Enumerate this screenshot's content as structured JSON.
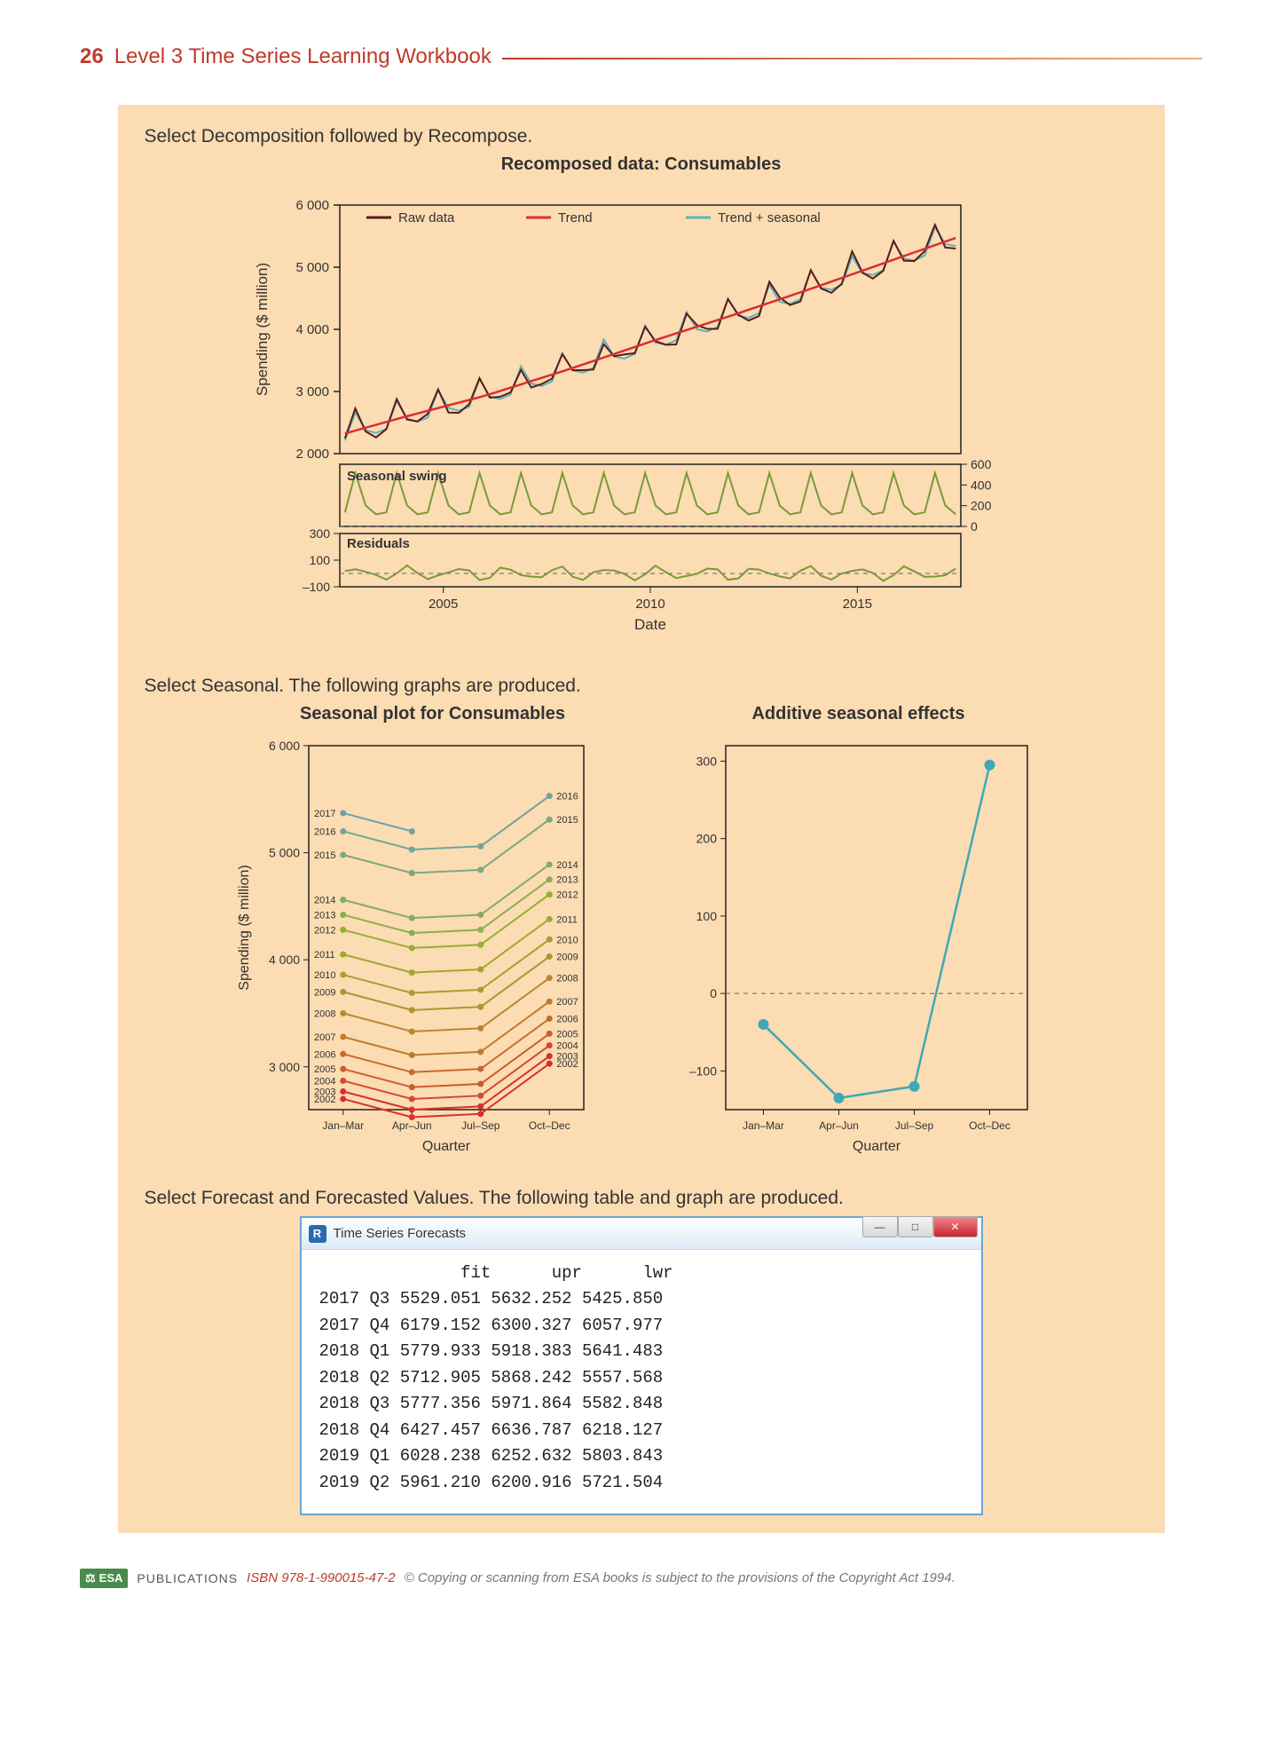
{
  "header": {
    "page_number": "26",
    "title": "Level 3 Time Series Learning Workbook"
  },
  "section1": {
    "instruction": "Select Decomposition followed by Recompose.",
    "chart": {
      "title": "Recomposed data: Consumables",
      "type": "line",
      "legend": [
        {
          "label": "Raw data",
          "color": "#5a1a1d"
        },
        {
          "label": "Trend",
          "color": "#d73030"
        },
        {
          "label": "Trend + seasonal",
          "color": "#5bb5b5"
        }
      ],
      "panels": {
        "main": {
          "ylabel": "Spending ($ million)",
          "ylim": [
            2000,
            6000
          ],
          "yticks": [
            2000,
            3000,
            4000,
            5000,
            6000
          ],
          "ytick_labels": [
            "2 000",
            "3 000",
            "4 000",
            "5 000",
            "6 000"
          ],
          "x_years": [
            2002.5,
            2017.5
          ],
          "trend": [
            [
              2002.5,
              2300
            ],
            [
              2004,
              2580
            ],
            [
              2006,
              2930
            ],
            [
              2008,
              3350
            ],
            [
              2010,
              3800
            ],
            [
              2012,
              4230
            ],
            [
              2014,
              4680
            ],
            [
              2016,
              5150
            ],
            [
              2017.5,
              5500
            ]
          ],
          "seasonal_amp": 300,
          "raw_noise_amp": 80
        },
        "seasonal": {
          "label": "Seasonal swing",
          "ylim": [
            0,
            600
          ],
          "yticks": [
            0,
            200,
            400,
            600
          ],
          "color": "#7a9a3a",
          "amp": 300,
          "baseline": 100
        },
        "residuals": {
          "label": "Residuals",
          "ylim": [
            -100,
            300
          ],
          "yticks": [
            -100,
            100,
            300
          ],
          "ytick_labels": [
            "–100",
            "100",
            "300"
          ],
          "color": "#7a9a3a",
          "amp": 60
        }
      },
      "xlabel": "Date",
      "xticks": [
        2005,
        2010,
        2015
      ]
    }
  },
  "section2": {
    "instruction": "Select Seasonal. The following graphs are produced.",
    "seasonal_plot": {
      "title": "Seasonal plot for Consumables",
      "type": "line",
      "ylabel": "Spending ($ million)",
      "xlabel": "Quarter",
      "ylim": [
        2600,
        6000
      ],
      "yticks": [
        3000,
        4000,
        5000,
        6000
      ],
      "ytick_labels": [
        "3 000",
        "4 000",
        "5 000",
        "6 000"
      ],
      "xticks": [
        "Jan–Mar",
        "Apr–Jun",
        "Jul–Sep",
        "Oct–Dec"
      ],
      "years": [
        {
          "year": "2002",
          "base": 2700,
          "color": "#d73030"
        },
        {
          "year": "2003",
          "base": 2770,
          "color": "#d73030"
        },
        {
          "year": "2004",
          "base": 2870,
          "color": "#d24a30"
        },
        {
          "year": "2005",
          "base": 2980,
          "color": "#cc5a30"
        },
        {
          "year": "2006",
          "base": 3120,
          "color": "#c66a30"
        },
        {
          "year": "2007",
          "base": 3280,
          "color": "#c07a30"
        },
        {
          "year": "2008",
          "base": 3500,
          "color": "#ba8830"
        },
        {
          "year": "2009",
          "base": 3700,
          "color": "#b29430"
        },
        {
          "year": "2010",
          "base": 3860,
          "color": "#aa9e30"
        },
        {
          "year": "2011",
          "base": 4050,
          "color": "#a0a830"
        },
        {
          "year": "2012",
          "base": 4280,
          "color": "#94b030"
        },
        {
          "year": "2013",
          "base": 4420,
          "color": "#8aae50"
        },
        {
          "year": "2014",
          "base": 4560,
          "color": "#82ac68"
        },
        {
          "year": "2015",
          "base": 4980,
          "color": "#7aa880"
        },
        {
          "year": "2016",
          "base": 5200,
          "color": "#72a498"
        },
        {
          "year": "2017",
          "base": 5370,
          "color": "#6aa0b0",
          "partial": 2
        }
      ],
      "quarter_offsets": [
        0,
        -170,
        -140,
        330
      ]
    },
    "additive": {
      "title": "Additive seasonal effects",
      "type": "line",
      "xlabel": "Quarter",
      "ylim": [
        -150,
        320
      ],
      "yticks": [
        -100,
        0,
        100,
        200,
        300
      ],
      "ytick_labels": [
        "–100",
        "0",
        "100",
        "200",
        "300"
      ],
      "xticks": [
        "Jan–Mar",
        "Apr–Jun",
        "Jul–Sep",
        "Oct–Dec"
      ],
      "color": "#3fa8b8",
      "marker_size": 6,
      "values": [
        -40,
        -135,
        -120,
        295
      ]
    }
  },
  "section3": {
    "instruction": "Select Forecast and Forecasted Values. The following table and graph are produced.",
    "window": {
      "title": "Time Series Forecasts",
      "header": "              fit      upr      lwr",
      "rows": [
        "2017 Q3 5529.051 5632.252 5425.850",
        "2017 Q4 6179.152 6300.327 6057.977",
        "2018 Q1 5779.933 5918.383 5641.483",
        "2018 Q2 5712.905 5868.242 5557.568",
        "2018 Q3 5777.356 5971.864 5582.848",
        "2018 Q4 6427.457 6636.787 6218.127",
        "2019 Q1 6028.238 6252.632 5803.843",
        "2019 Q2 5961.210 6200.916 5721.504"
      ]
    }
  },
  "footer": {
    "publisher_badge": "ESA",
    "publisher": "PUBLICATIONS",
    "isbn": "ISBN 978-1-990015-47-2",
    "copyright": "© Copying or scanning from ESA books is subject to the provisions of the Copyright Act 1994."
  }
}
